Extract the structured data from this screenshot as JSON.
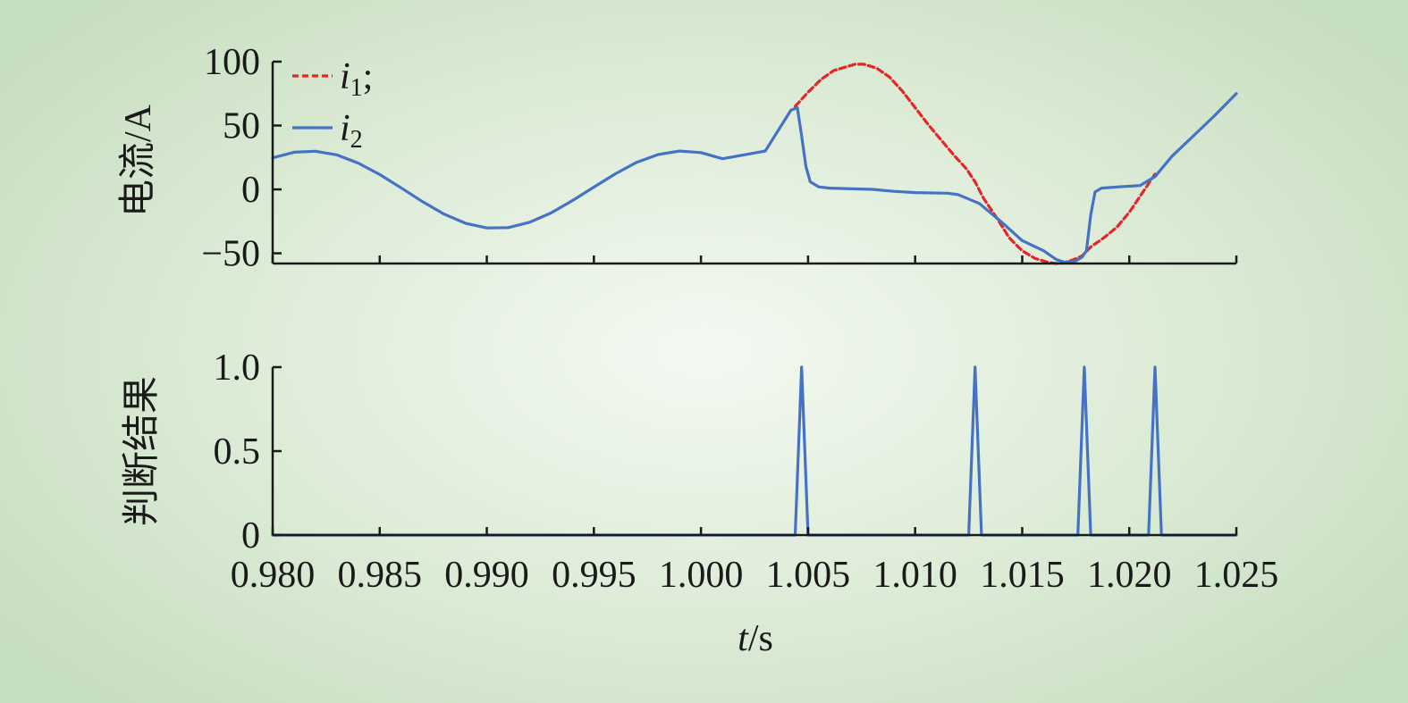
{
  "chart_data": [
    {
      "type": "line",
      "ylabel": "电流/A",
      "ylim": [
        -58,
        100
      ],
      "yticks": [
        100,
        50,
        0,
        -50
      ],
      "ytick_labels": [
        "100",
        "50",
        "0",
        "−50"
      ],
      "xlim": [
        0.98,
        1.025
      ],
      "xticks": [
        0.98,
        0.985,
        0.99,
        0.995,
        1.0,
        1.005,
        1.01,
        1.015,
        1.02,
        1.025
      ],
      "legend": {
        "placement": "top-left"
      },
      "series": [
        {
          "name": "i1",
          "legend_var": "i",
          "legend_sub": "1",
          "legend_suffix": ";",
          "color": "#e02828",
          "style": "dashed",
          "x": [
            1.0044,
            1.005,
            1.0056,
            1.0062,
            1.0068,
            1.0072,
            1.0076,
            1.0082,
            1.0088,
            1.0094,
            1.01,
            1.0106,
            1.0112,
            1.0118,
            1.0124,
            1.0128,
            1.0132,
            1.0138,
            1.0144,
            1.015,
            1.0156,
            1.0162,
            1.0166,
            1.017,
            1.0174,
            1.0178,
            1.0182,
            1.0188,
            1.0194,
            1.02,
            1.0206,
            1.0212
          ],
          "y": [
            65,
            76,
            86,
            93,
            96,
            98,
            98,
            95,
            88,
            77,
            64,
            51,
            39,
            27,
            16,
            6,
            -7,
            -22,
            -38,
            -48,
            -54,
            -57,
            -58,
            -57,
            -55,
            -52,
            -45,
            -38,
            -30,
            -18,
            -3,
            12
          ]
        },
        {
          "name": "i2",
          "legend_var": "i",
          "legend_sub": "2",
          "legend_suffix": "",
          "color": "#4472c4",
          "style": "solid",
          "x": [
            0.98,
            0.981,
            0.982,
            0.983,
            0.984,
            0.985,
            0.986,
            0.987,
            0.988,
            0.989,
            0.99,
            0.991,
            0.992,
            0.993,
            0.994,
            0.995,
            0.996,
            0.997,
            0.998,
            0.999,
            1.0,
            1.001,
            1.002,
            1.003,
            1.0036,
            1.0042,
            1.0045,
            1.0047,
            1.0049,
            1.0051,
            1.0055,
            1.006,
            1.008,
            1.009,
            1.01,
            1.0115,
            1.012,
            1.013,
            1.014,
            1.015,
            1.016,
            1.0166,
            1.017,
            1.0175,
            1.0178,
            1.018,
            1.0182,
            1.0184,
            1.0187,
            1.0195,
            1.0205,
            1.0212,
            1.022,
            1.023,
            1.024,
            1.025
          ],
          "y": [
            24.7,
            29.1,
            29.9,
            27.0,
            20.6,
            11.6,
            1.2,
            -9.6,
            -19.3,
            -26.5,
            -30.2,
            -29.9,
            -25.7,
            -18.4,
            -8.7,
            1.8,
            12.2,
            21.2,
            27.3,
            30.0,
            28.8,
            24.0,
            27.0,
            30.0,
            46.0,
            62.0,
            64.0,
            42.0,
            18.0,
            6.0,
            2.0,
            1.0,
            0.0,
            -1.5,
            -2.5,
            -3.0,
            -4.0,
            -11.0,
            -25.0,
            -40.0,
            -48.0,
            -55.0,
            -57.0,
            -56.0,
            -53.0,
            -48.0,
            -20.0,
            -2.0,
            1.0,
            2.0,
            3.0,
            10.0,
            26.0,
            42.0,
            58.0,
            75.0
          ]
        }
      ]
    },
    {
      "type": "line",
      "ylabel": "判断结果",
      "ylim": [
        0,
        1.0
      ],
      "yticks": [
        1.0,
        0.5,
        0
      ],
      "ytick_labels": [
        "1.0",
        "0.5",
        "0"
      ],
      "xlim": [
        0.98,
        1.025
      ],
      "xticks": [
        0.98,
        0.985,
        0.99,
        0.995,
        1.0,
        1.005,
        1.01,
        1.015,
        1.02,
        1.025
      ],
      "xtick_labels": [
        "0.980",
        "0.985",
        "0.990",
        "0.995",
        "1.000",
        "1.005",
        "1.010",
        "1.015",
        "1.020",
        "1.025"
      ],
      "xlabel_var": "t",
      "xlabel_unit": "/s",
      "series": [
        {
          "color": "#4472c4",
          "style": "solid",
          "x": [
            0.98,
            1.0044,
            1.0047,
            1.005,
            1.0125,
            1.0128,
            1.0131,
            1.0176,
            1.0179,
            1.0182,
            1.0209,
            1.0212,
            1.0215,
            1.025
          ],
          "y": [
            0,
            0,
            1,
            0,
            0,
            1,
            0,
            0,
            1,
            0,
            0,
            1,
            0,
            0
          ]
        }
      ]
    }
  ]
}
